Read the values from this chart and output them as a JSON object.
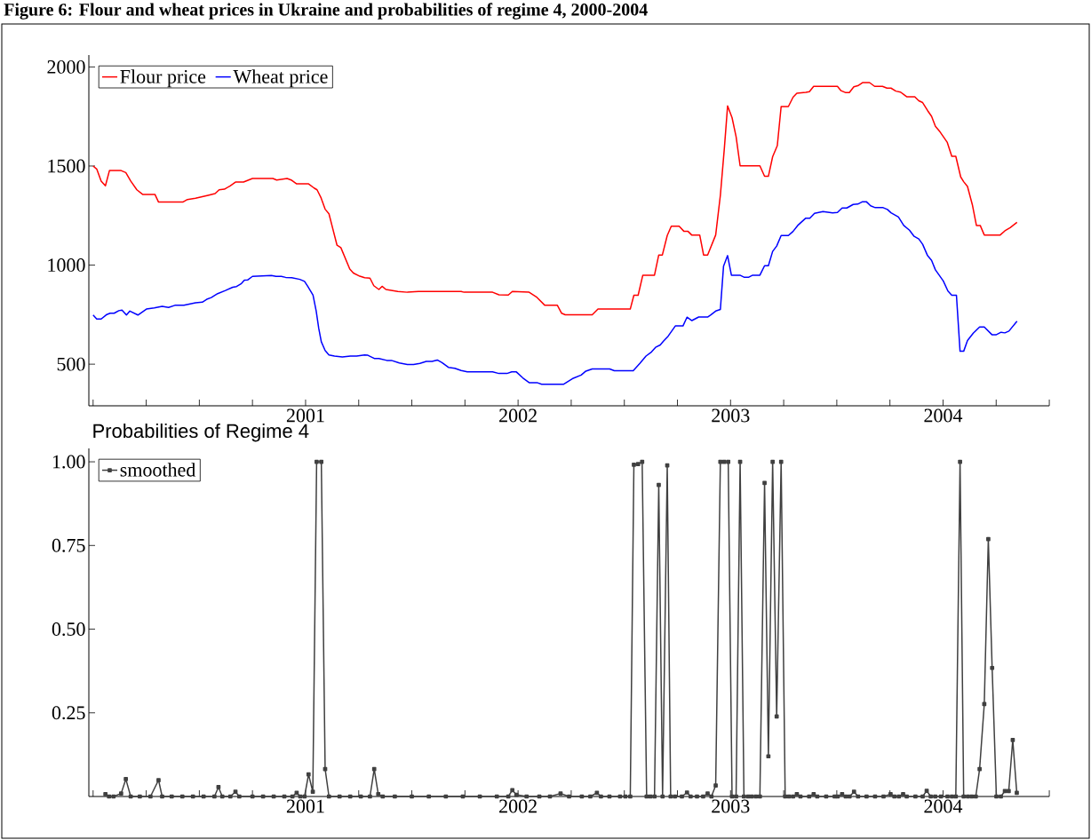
{
  "chart_data": [
    {
      "type": "line",
      "title": "Figure 6: Flour and wheat prices in Ukraine and probabilities of regime 4, 2000-2004",
      "legend": "top left",
      "xlim": [
        1999.98,
        2004.5
      ],
      "ylim": [
        290,
        2060
      ],
      "xticks": [
        {
          "value": 2000,
          "label": null
        },
        {
          "value": 2000.25,
          "label": null
        },
        {
          "value": 2000.5,
          "label": null
        },
        {
          "value": 2000.75,
          "label": null
        },
        2001,
        {
          "value": 2001.25,
          "label": null
        },
        {
          "value": 2001.5,
          "label": null
        },
        {
          "value": 2001.75,
          "label": null
        },
        2002,
        {
          "value": 2002.25,
          "label": null
        },
        {
          "value": 2002.5,
          "label": null
        },
        {
          "value": 2002.75,
          "label": null
        },
        2003,
        {
          "value": 2003.25,
          "label": null
        },
        {
          "value": 2003.5,
          "label": null
        },
        {
          "value": 2003.75,
          "label": null
        },
        2004,
        {
          "value": 2004.25,
          "label": null
        },
        {
          "value": 2004.5,
          "label": null
        }
      ],
      "yticks": [
        500,
        1000,
        1500,
        2000
      ],
      "series": [
        {
          "name": "Flour price",
          "color": "#ff0000",
          "x": [
            2000.0,
            2000.017,
            2000.038,
            2000.058,
            2000.077,
            2000.132,
            2000.154,
            2000.177,
            2000.206,
            2000.233,
            2000.291,
            2000.308,
            2000.422,
            2000.444,
            2000.482,
            2000.541,
            2000.574,
            2000.593,
            2000.618,
            2000.645,
            2000.67,
            2000.708,
            2000.75,
            2000.846,
            2000.864,
            2000.913,
            2000.935,
            2000.958,
            2001.014,
            2001.04,
            2001.054,
            2001.073,
            2001.092,
            2001.11,
            2001.148,
            2001.166,
            2001.208,
            2001.225,
            2001.255,
            2001.278,
            2001.303,
            2001.321,
            2001.345,
            2001.36,
            2001.378,
            2001.434,
            2001.479,
            2001.531,
            2001.732,
            2001.746,
            2001.88,
            2001.91,
            2001.954,
            2001.973,
            2002.052,
            2002.089,
            2002.126,
            2002.185,
            2002.205,
            2002.222,
            2002.349,
            2002.376,
            2002.528,
            2002.545,
            2002.565,
            2002.587,
            2002.642,
            2002.662,
            2002.679,
            2002.702,
            2002.721,
            2002.758,
            2002.781,
            2002.8,
            2002.818,
            2002.855,
            2002.873,
            2002.892,
            2002.93,
            2002.952,
            2002.971,
            2002.986,
            2003.007,
            2003.026,
            2003.045,
            2003.138,
            2003.16,
            2003.178,
            2003.198,
            2003.22,
            2003.238,
            2003.272,
            2003.294,
            2003.312,
            2003.354,
            2003.371,
            2003.391,
            2003.503,
            2003.52,
            2003.54,
            2003.559,
            2003.58,
            2003.599,
            2003.621,
            2003.654,
            2003.678,
            2003.715,
            2003.736,
            2003.755,
            2003.778,
            2003.8,
            2003.83,
            2003.867,
            2003.886,
            2003.904,
            2003.927,
            2003.946,
            2003.964,
            2003.986,
            2004.02,
            2004.041,
            2004.06,
            2004.083,
            2004.097,
            2004.115,
            2004.138,
            2004.157,
            2004.175,
            2004.194,
            2004.269,
            2004.291,
            2004.316,
            2004.348
          ],
          "values": [
            1500,
            1485,
            1424,
            1400,
            1477,
            1477,
            1467,
            1424,
            1380,
            1357,
            1357,
            1318,
            1318,
            1331,
            1337,
            1352,
            1361,
            1380,
            1383,
            1400,
            1419,
            1419,
            1437,
            1437,
            1429,
            1437,
            1428,
            1410,
            1410,
            1389,
            1380,
            1339,
            1282,
            1259,
            1100,
            1088,
            980,
            960,
            944,
            936,
            934,
            896,
            877,
            893,
            877,
            867,
            863,
            867,
            867,
            863,
            863,
            850,
            849,
            867,
            863,
            837,
            797,
            797,
            757,
            749,
            749,
            778,
            778,
            848,
            848,
            949,
            949,
            1051,
            1051,
            1149,
            1196,
            1196,
            1170,
            1170,
            1151,
            1151,
            1051,
            1051,
            1152,
            1352,
            1592,
            1803,
            1744,
            1648,
            1501,
            1501,
            1448,
            1448,
            1547,
            1603,
            1800,
            1800,
            1847,
            1867,
            1872,
            1875,
            1902,
            1902,
            1880,
            1871,
            1871,
            1900,
            1905,
            1921,
            1921,
            1902,
            1902,
            1893,
            1893,
            1878,
            1873,
            1849,
            1849,
            1829,
            1820,
            1780,
            1751,
            1700,
            1672,
            1619,
            1549,
            1549,
            1445,
            1421,
            1397,
            1304,
            1200,
            1200,
            1152,
            1152,
            1173,
            1189,
            1216
          ]
        },
        {
          "name": "Wheat price",
          "color": "#0000ff",
          "x": [
            2000.0,
            2000.017,
            2000.038,
            2000.062,
            2000.08,
            2000.099,
            2000.121,
            2000.136,
            2000.157,
            2000.173,
            2000.211,
            2000.251,
            2000.288,
            2000.325,
            2000.355,
            2000.385,
            2000.427,
            2000.482,
            2000.514,
            2000.538,
            2000.556,
            2000.586,
            2000.623,
            2000.657,
            2000.675,
            2000.698,
            2000.712,
            2000.727,
            2000.75,
            2000.839,
            2000.861,
            2000.886,
            2000.906,
            2000.935,
            2000.973,
            2000.995,
            2001.01,
            2001.035,
            2001.05,
            2001.062,
            2001.074,
            2001.092,
            2001.11,
            2001.136,
            2001.173,
            2001.211,
            2001.24,
            2001.278,
            2001.293,
            2001.323,
            2001.345,
            2001.382,
            2001.404,
            2001.441,
            2001.479,
            2001.508,
            2001.538,
            2001.568,
            2001.595,
            2001.62,
            2001.642,
            2001.672,
            2001.702,
            2001.732,
            2001.761,
            2001.88,
            2001.91,
            2001.948,
            2001.97,
            2001.992,
            2002.022,
            2002.052,
            2002.089,
            2002.111,
            2002.215,
            2002.26,
            2002.297,
            2002.319,
            2002.349,
            2002.431,
            2002.453,
            2002.542,
            2002.573,
            2002.602,
            2002.628,
            2002.647,
            2002.669,
            2002.684,
            2002.706,
            2002.74,
            2002.776,
            2002.795,
            2002.818,
            2002.85,
            2002.892,
            2002.907,
            2002.93,
            2002.952,
            2002.967,
            2002.986,
            2003.004,
            2003.044,
            2003.063,
            2003.086,
            2003.104,
            2003.138,
            2003.16,
            2003.178,
            2003.198,
            2003.217,
            2003.238,
            2003.272,
            2003.294,
            2003.316,
            2003.354,
            2003.373,
            2003.395,
            2003.435,
            2003.48,
            2003.503,
            2003.525,
            2003.547,
            2003.577,
            2003.599,
            2003.621,
            2003.639,
            2003.659,
            2003.681,
            2003.718,
            2003.738,
            2003.755,
            2003.79,
            2003.815,
            2003.842,
            2003.864,
            2003.886,
            2003.904,
            2003.927,
            2003.946,
            2003.964,
            2004.001,
            2004.023,
            2004.041,
            2004.063,
            2004.08,
            2004.097,
            2004.115,
            2004.142,
            2004.172,
            2004.194,
            2004.231,
            2004.249,
            2004.273,
            2004.291,
            2004.31,
            2004.348
          ],
          "values": [
            748,
            728,
            728,
            749,
            757,
            757,
            770,
            773,
            748,
            768,
            748,
            778,
            784,
            792,
            786,
            797,
            797,
            810,
            813,
            829,
            836,
            856,
            872,
            888,
            892,
            907,
            924,
            925,
            943,
            948,
            943,
            943,
            938,
            936,
            928,
            918,
            893,
            848,
            768,
            680,
            613,
            569,
            547,
            541,
            536,
            541,
            541,
            547,
            545,
            529,
            529,
            519,
            519,
            506,
            498,
            498,
            504,
            514,
            514,
            521,
            508,
            484,
            479,
            468,
            461,
            461,
            453,
            453,
            461,
            461,
            431,
            407,
            407,
            399,
            399,
            429,
            445,
            465,
            476,
            476,
            467,
            467,
            504,
            541,
            562,
            585,
            597,
            616,
            641,
            693,
            693,
            737,
            720,
            738,
            738,
            749,
            768,
            776,
            995,
            1048,
            949,
            949,
            939,
            939,
            949,
            949,
            997,
            997,
            1069,
            1096,
            1149,
            1149,
            1170,
            1200,
            1237,
            1237,
            1261,
            1270,
            1264,
            1266,
            1288,
            1288,
            1306,
            1308,
            1320,
            1320,
            1299,
            1290,
            1290,
            1281,
            1264,
            1243,
            1200,
            1176,
            1145,
            1132,
            1105,
            1048,
            1024,
            976,
            920,
            869,
            848,
            848,
            565,
            565,
            619,
            656,
            688,
            688,
            648,
            648,
            661,
            658,
            667,
            717
          ]
        }
      ]
    },
    {
      "type": "line",
      "title": "Probabilities of Regime 4",
      "legend": "top left",
      "marker": "square",
      "xlim": [
        1999.98,
        2004.5
      ],
      "ylim": [
        0,
        1.04
      ],
      "xticks": [
        {
          "value": 2000,
          "label": null
        },
        {
          "value": 2000.25,
          "label": null
        },
        {
          "value": 2000.5,
          "label": null
        },
        {
          "value": 2000.75,
          "label": null
        },
        2001,
        {
          "value": 2001.25,
          "label": null
        },
        {
          "value": 2001.5,
          "label": null
        },
        {
          "value": 2001.75,
          "label": null
        },
        2002,
        {
          "value": 2002.25,
          "label": null
        },
        {
          "value": 2002.5,
          "label": null
        },
        {
          "value": 2002.75,
          "label": null
        },
        2003,
        {
          "value": 2003.25,
          "label": null
        },
        {
          "value": 2003.5,
          "label": null
        },
        {
          "value": 2003.75,
          "label": null
        },
        2004,
        {
          "value": 2004.25,
          "label": null
        },
        {
          "value": 2004.5,
          "label": null
        }
      ],
      "yticks": [
        0.25,
        {
          "value": 0.5,
          "label": "0.50"
        },
        0.75,
        {
          "value": 1,
          "label": "1.00"
        }
      ],
      "series": [
        {
          "name": "smoothed",
          "color": "#404040",
          "x": [
            2000.058,
            2000.075,
            2000.096,
            2000.132,
            2000.154,
            2000.177,
            2000.22,
            2000.27,
            2000.308,
            2000.325,
            2000.37,
            2000.42,
            2000.47,
            2000.52,
            2000.571,
            2000.59,
            2000.608,
            2000.646,
            2000.67,
            2000.688,
            2000.75,
            2000.8,
            2000.85,
            2000.9,
            2000.938,
            2000.958,
            2000.975,
            2000.995,
            2001.014,
            2001.034,
            2001.052,
            2001.074,
            2001.092,
            2001.11,
            2001.16,
            2001.21,
            2001.26,
            2001.303,
            2001.323,
            2001.342,
            2001.363,
            2001.42,
            2001.5,
            2001.58,
            2001.66,
            2001.74,
            2001.82,
            2001.9,
            2001.954,
            2001.973,
            2001.992,
            2002.04,
            2002.1,
            2002.15,
            2002.2,
            2002.24,
            2002.3,
            2002.34,
            2002.371,
            2002.39,
            2002.43,
            2002.48,
            2002.505,
            2002.528,
            2002.545,
            2002.565,
            2002.584,
            2002.605,
            2002.623,
            2002.642,
            2002.662,
            2002.68,
            2002.702,
            2002.718,
            2002.738,
            2002.771,
            2002.795,
            2002.812,
            2002.842,
            2002.871,
            2002.892,
            2002.91,
            2002.93,
            2002.952,
            2002.97,
            2002.989,
            2003.007,
            2003.026,
            2003.045,
            2003.063,
            2003.083,
            2003.1,
            2003.119,
            2003.138,
            2003.16,
            2003.178,
            2003.198,
            2003.217,
            2003.238,
            2003.257,
            2003.275,
            2003.294,
            2003.312,
            2003.329,
            2003.37,
            2003.391,
            2003.408,
            2003.45,
            2003.49,
            2003.504,
            2003.525,
            2003.542,
            2003.56,
            2003.581,
            2003.6,
            2003.64,
            2003.68,
            2003.72,
            2003.753,
            2003.771,
            2003.792,
            2003.812,
            2003.829,
            2003.87,
            2003.904,
            2003.923,
            2003.942,
            2003.963,
            2003.99,
            2004.021,
            2004.042,
            2004.06,
            2004.08,
            2004.097,
            2004.117,
            2004.135,
            2004.154,
            2004.172,
            2004.194,
            2004.213,
            2004.231,
            2004.251,
            2004.272,
            2004.291,
            2004.309,
            2004.328,
            2004.347
          ],
          "values": [
            0.007,
            0,
            0,
            0.009,
            0.052,
            0,
            0,
            0,
            0.049,
            0,
            0,
            0,
            0,
            0,
            0,
            0.028,
            0,
            0,
            0.014,
            0,
            0,
            0,
            0,
            0,
            0,
            0.011,
            0,
            0,
            0.066,
            0.014,
            1.0,
            1.0,
            0.082,
            0,
            0,
            0,
            0,
            0,
            0.082,
            0.007,
            0,
            0,
            0,
            0,
            0,
            0,
            0,
            0,
            0,
            0.019,
            0.005,
            0,
            0,
            0,
            0.009,
            0,
            0,
            0,
            0.011,
            0,
            0,
            0,
            0,
            0,
            0.991,
            0.993,
            1.0,
            0,
            0,
            0,
            0.931,
            0,
            0.989,
            0,
            0,
            0,
            0.012,
            0,
            0,
            0,
            0.009,
            0,
            0.033,
            1.0,
            1.0,
            1.0,
            0,
            0,
            1.0,
            0,
            0,
            0,
            0,
            0,
            0.937,
            0.12,
            1.0,
            0.239,
            1.0,
            0,
            0,
            0,
            0.007,
            0,
            0,
            0.007,
            0,
            0,
            0,
            0,
            0.007,
            0,
            0,
            0.014,
            0,
            0,
            0,
            0,
            0.007,
            0,
            0,
            0.007,
            0,
            0,
            0,
            0.017,
            0,
            0,
            0,
            0,
            0,
            0,
            1.0,
            0,
            0,
            0,
            0,
            0.082,
            0.276,
            0.769,
            0.384,
            0,
            0,
            0.016,
            0.016,
            0.169,
            0.011
          ]
        }
      ]
    }
  ]
}
